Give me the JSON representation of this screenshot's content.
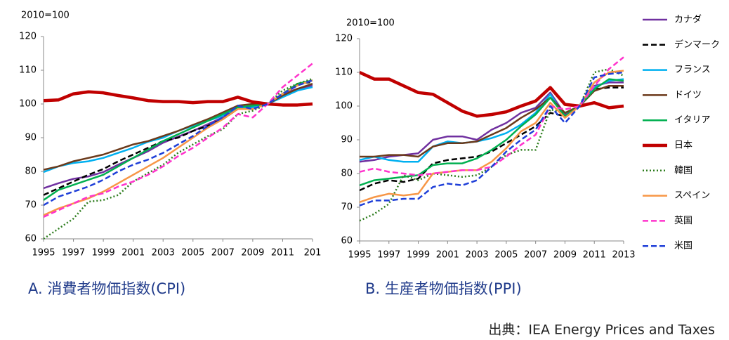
{
  "chart_data": [
    {
      "type": "line",
      "title": "A.  消費者物価指数(CPI)",
      "ylabel": "2010=100",
      "x": [
        1995,
        1996,
        1997,
        1998,
        1999,
        2000,
        2001,
        2002,
        2003,
        2004,
        2005,
        2006,
        2007,
        2008,
        2009,
        2010,
        2011,
        2012,
        2013
      ],
      "xlim": [
        1995,
        2013
      ],
      "xticks": [
        1995,
        1997,
        1999,
        2001,
        2003,
        2005,
        2007,
        2009,
        2011,
        {
          "value": 2013,
          "label": "201"
        }
      ],
      "ylim": [
        60,
        120
      ],
      "yticks": [
        60,
        70,
        80,
        90,
        100,
        110,
        120
      ],
      "grid": false,
      "series": [
        {
          "name": "カナダ",
          "color": "#7030a0",
          "style": "solid",
          "values": [
            75,
            76.5,
            77.8,
            78.5,
            79.8,
            82,
            84,
            86,
            88.5,
            90.3,
            92,
            94,
            96,
            98.5,
            98.7,
            100,
            103,
            104.5,
            105.5
          ]
        },
        {
          "name": "デンマーク",
          "color": "#000000",
          "style": "dashed",
          "values": [
            73,
            75,
            77,
            79,
            80.7,
            83,
            85,
            87,
            89,
            90,
            92,
            93.5,
            95.5,
            98.5,
            99.5,
            100,
            103,
            106,
            106.5
          ]
        },
        {
          "name": "フランス",
          "color": "#00b0f0",
          "style": "solid",
          "values": [
            79.8,
            81.5,
            82.5,
            83,
            84,
            85.5,
            87,
            88.8,
            90,
            92,
            93.5,
            95,
            96.5,
            99,
            99,
            100,
            102,
            104,
            105
          ]
        },
        {
          "name": "ドイツ",
          "color": "#6b3a1b",
          "style": "solid",
          "values": [
            80.5,
            81.5,
            83,
            84,
            85,
            86.5,
            88,
            89,
            90.5,
            92,
            93.8,
            95.5,
            97.5,
            99.5,
            100,
            100,
            102.5,
            104.5,
            106
          ]
        },
        {
          "name": "イタリア",
          "color": "#00b050",
          "style": "solid",
          "values": [
            71.5,
            74.5,
            76,
            77.5,
            79,
            81.5,
            84,
            86.5,
            89,
            91,
            93,
            95,
            97,
            99,
            99.5,
            100,
            103,
            106,
            107
          ]
        },
        {
          "name": "日本",
          "color": "#c00000",
          "style": "thick",
          "values": [
            101,
            101.2,
            103,
            103.6,
            103.3,
            102.5,
            101.8,
            101,
            100.7,
            100.7,
            100.4,
            100.7,
            100.7,
            102,
            100.6,
            100,
            99.7,
            99.7,
            100
          ]
        },
        {
          "name": "韓国",
          "color": "#2e7d1e",
          "style": "dotted",
          "values": [
            60,
            63,
            66,
            71,
            71.5,
            73,
            77,
            79.5,
            82,
            85.5,
            88,
            90.5,
            92.5,
            97,
            98,
            100,
            104,
            106,
            107.5
          ]
        },
        {
          "name": "スペイン",
          "color": "#f79646",
          "style": "solid",
          "values": [
            67,
            69,
            70.5,
            72,
            74,
            76.5,
            79,
            81.5,
            84,
            87,
            90,
            93,
            95.5,
            98.5,
            98.5,
            100,
            103,
            105.5,
            107
          ]
        },
        {
          "name": "英国",
          "color": "#ff33cc",
          "style": "dashed",
          "values": [
            66.5,
            68.5,
            70.5,
            72.5,
            73.5,
            75.5,
            77,
            79,
            81.5,
            84.5,
            87,
            90,
            93,
            97,
            96,
            100,
            105,
            108.5,
            112
          ]
        },
        {
          "name": "米国",
          "color": "#1f3fd8",
          "style": "dashed",
          "values": [
            70,
            72.5,
            74,
            75.5,
            77.5,
            80,
            82,
            83.5,
            85.5,
            88,
            90.5,
            93.5,
            96,
            99.5,
            98.5,
            100,
            103,
            105.5,
            107
          ]
        }
      ]
    },
    {
      "type": "line",
      "title": "B.  生産者物価指数(PPI)",
      "ylabel": "2010=100",
      "x": [
        1995,
        1996,
        1997,
        1998,
        1999,
        2000,
        2001,
        2002,
        2003,
        2004,
        2005,
        2006,
        2007,
        2008,
        2009,
        2010,
        2011,
        2012,
        2013
      ],
      "xlim": [
        1995,
        2013
      ],
      "xticks": [
        1995,
        1997,
        1999,
        2001,
        2003,
        2005,
        2007,
        2009,
        2011,
        2013
      ],
      "ylim": [
        60,
        120
      ],
      "yticks": [
        60,
        70,
        80,
        90,
        100,
        110,
        120
      ],
      "grid": false,
      "series": [
        {
          "color": "#7030a0",
          "style": "solid",
          "values": [
            83.5,
            84,
            85,
            85.5,
            86,
            90,
            91,
            91,
            90,
            93,
            95,
            98,
            99.5,
            104,
            97.5,
            100,
            106,
            107,
            107
          ]
        },
        {
          "color": "#000000",
          "style": "dashed",
          "values": [
            75,
            77,
            78,
            77.5,
            78.5,
            83,
            84,
            84.5,
            85,
            86.5,
            89,
            91.5,
            94,
            98,
            97,
            100,
            105,
            105.5,
            105.5
          ]
        },
        {
          "color": "#00b0f0",
          "style": "solid",
          "values": [
            84,
            85,
            84,
            83.5,
            83.5,
            88,
            89.5,
            89,
            89.5,
            90.5,
            92,
            94.5,
            98,
            103.5,
            97,
            100,
            105.5,
            107.5,
            108
          ]
        },
        {
          "color": "#6b3a1b",
          "style": "solid",
          "values": [
            85,
            85,
            85.5,
            85.5,
            85,
            88,
            89,
            89,
            89.5,
            91.5,
            93.5,
            96.5,
            99,
            102.5,
            98,
            100,
            104.5,
            106,
            106
          ]
        },
        {
          "color": "#00b050",
          "style": "solid",
          "values": [
            76.5,
            78,
            78.5,
            79,
            79.5,
            82.5,
            83,
            83,
            84.5,
            87,
            90,
            94,
            97.5,
            102.5,
            97,
            100,
            105,
            108,
            107.5
          ]
        },
        {
          "color": "#c00000",
          "style": "thick",
          "values": [
            110,
            108,
            108,
            106,
            104,
            103.5,
            101,
            98.5,
            97,
            97.5,
            98.3,
            100,
            101.5,
            105.5,
            100.5,
            100,
            101,
            99.5,
            100
          ]
        },
        {
          "color": "#2e7d1e",
          "style": "dotted",
          "values": [
            66,
            68,
            71,
            79.5,
            78,
            80,
            79.5,
            79,
            79.5,
            82,
            85.5,
            87,
            87,
            99,
            98,
            100,
            110,
            111,
            109
          ]
        },
        {
          "color": "#f79646",
          "style": "solid",
          "values": [
            71.5,
            73,
            74,
            73.5,
            74,
            80,
            80.5,
            81,
            81,
            83.5,
            87.5,
            92.5,
            95,
            101,
            96.5,
            100,
            107,
            110,
            110.5
          ]
        },
        {
          "color": "#ff33cc",
          "style": "dashed",
          "values": [
            80.5,
            81.5,
            80.5,
            80,
            79.5,
            80,
            80.5,
            81,
            81,
            82,
            85,
            88.5,
            91.5,
            100,
            99,
            100,
            106,
            111,
            114.5
          ]
        },
        {
          "color": "#1f3fd8",
          "style": "dashed",
          "values": [
            70.5,
            72,
            72,
            72.5,
            72.5,
            76,
            77,
            76.5,
            78,
            82,
            86.5,
            90,
            93,
            100,
            95,
            100,
            108.5,
            109.5,
            110
          ]
        }
      ]
    }
  ],
  "source": "出典：IEA Energy Prices and Taxes"
}
